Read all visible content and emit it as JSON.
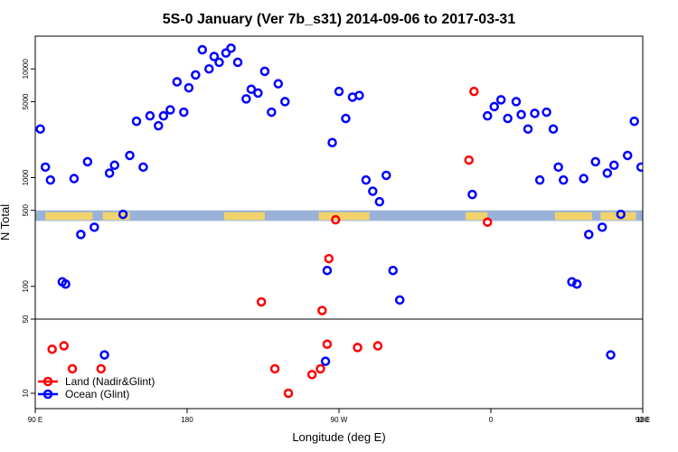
{
  "chart_data": {
    "type": "scatter",
    "title": "5S-0 January (Ver 7b_s31)   2014-09-06 to 2017-03-31",
    "xlabel": "Longitude (deg E)",
    "ylabel": "N Total",
    "x_ticks": [
      "90 E",
      "180",
      "90 W",
      "0",
      "90 E",
      "180"
    ],
    "y_ticks": [
      "10",
      "50",
      "100",
      "500",
      "1000",
      "5000",
      "10000"
    ],
    "x_range_deg_east": [
      90,
      450
    ],
    "y_scale": "log",
    "y_ranges": {
      "lower_panel": [
        10,
        50
      ],
      "upper_panel": [
        50,
        20000
      ]
    },
    "map_strip": "world map with land in yellow and ocean in blue, between 400 and 500 on the upper panel",
    "legend_position": "bottom-left",
    "series": [
      {
        "name": "Land (Nadir&Glint)",
        "color": "#ff0000",
        "points": [
          [
            100,
            26
          ],
          [
            107,
            28
          ],
          [
            112,
            17
          ],
          [
            129,
            17
          ],
          [
            232,
            17
          ],
          [
            240,
            10
          ],
          [
            254,
            15
          ],
          [
            259,
            17
          ],
          [
            263,
            29
          ],
          [
            224,
            72
          ],
          [
            260,
            60
          ],
          [
            264,
            180
          ],
          [
            268,
            410
          ],
          [
            281,
            27
          ],
          [
            293,
            28
          ],
          [
            347,
            1450
          ],
          [
            350,
            6200
          ],
          [
            358,
            390
          ]
        ]
      },
      {
        "name": "Ocean (Glint)",
        "color": "#0000ff",
        "points": [
          [
            93,
            2800
          ],
          [
            96,
            1250
          ],
          [
            99,
            950
          ],
          [
            106,
            110
          ],
          [
            108,
            105
          ],
          [
            113,
            980
          ],
          [
            117,
            300
          ],
          [
            121,
            1400
          ],
          [
            125,
            350
          ],
          [
            131,
            23
          ],
          [
            134,
            1100
          ],
          [
            137,
            1300
          ],
          [
            142,
            460
          ],
          [
            146,
            1600
          ],
          [
            150,
            3300
          ],
          [
            154,
            1250
          ],
          [
            158,
            3700
          ],
          [
            163,
            3000
          ],
          [
            166,
            3700
          ],
          [
            170,
            4200
          ],
          [
            174,
            7600
          ],
          [
            178,
            4000
          ],
          [
            181,
            6700
          ],
          [
            185,
            8800
          ],
          [
            189,
            15000
          ],
          [
            193,
            10000
          ],
          [
            196,
            13000
          ],
          [
            199,
            11500
          ],
          [
            203,
            14000
          ],
          [
            206,
            15500
          ],
          [
            210,
            11500
          ],
          [
            215,
            5300
          ],
          [
            218,
            6500
          ],
          [
            222,
            6000
          ],
          [
            226,
            9500
          ],
          [
            230,
            4000
          ],
          [
            234,
            7300
          ],
          [
            238,
            5000
          ],
          [
            262,
            20
          ],
          [
            263,
            140
          ],
          [
            266,
            2100
          ],
          [
            270,
            6200
          ],
          [
            274,
            3500
          ],
          [
            278,
            5500
          ],
          [
            282,
            5700
          ],
          [
            286,
            950
          ],
          [
            290,
            750
          ],
          [
            294,
            600
          ],
          [
            298,
            1050
          ],
          [
            302,
            140
          ],
          [
            306,
            75
          ],
          [
            349,
            700
          ],
          [
            358,
            3700
          ],
          [
            362,
            4500
          ],
          [
            366,
            5200
          ],
          [
            370,
            3500
          ],
          [
            375,
            5000
          ],
          [
            378,
            3800
          ],
          [
            382,
            2800
          ],
          [
            386,
            3900
          ],
          [
            389,
            950
          ],
          [
            393,
            4000
          ],
          [
            397,
            2800
          ],
          [
            400,
            1250
          ],
          [
            403,
            950
          ],
          [
            408,
            110
          ],
          [
            411,
            105
          ],
          [
            415,
            980
          ],
          [
            418,
            300
          ],
          [
            422,
            1400
          ],
          [
            426,
            350
          ],
          [
            429,
            1100
          ],
          [
            431,
            23
          ],
          [
            433,
            1300
          ],
          [
            437,
            460
          ],
          [
            441,
            1600
          ],
          [
            445,
            3300
          ],
          [
            449,
            1250
          ],
          [
            453,
            3900
          ],
          [
            457,
            2900
          ],
          [
            459,
            1250
          ]
        ]
      }
    ]
  }
}
